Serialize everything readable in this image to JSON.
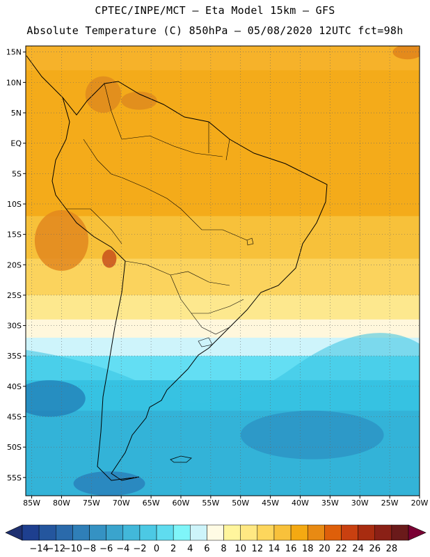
{
  "header": {
    "line1": "CPTEC/INPE/MCT –  Eta Model 15km – GFS",
    "line2": "Absolute Temperature (C) 850hPa – 05/08/2020 12UTC fct=98h"
  },
  "map": {
    "lat_range": [
      -58,
      16
    ],
    "lon_range": [
      -86,
      -20
    ],
    "lat_ticks": [
      "15N",
      "10N",
      "5N",
      "EQ",
      "5S",
      "10S",
      "15S",
      "20S",
      "25S",
      "30S",
      "35S",
      "40S",
      "45S",
      "50S",
      "55S"
    ],
    "lat_tick_values": [
      15,
      10,
      5,
      0,
      -5,
      -10,
      -15,
      -20,
      -25,
      -30,
      -35,
      -40,
      -45,
      -50,
      -55
    ],
    "lon_ticks": [
      "85W",
      "80W",
      "75W",
      "70W",
      "65W",
      "60W",
      "55W",
      "50W",
      "45W",
      "40W",
      "35W",
      "30W",
      "25W",
      "20W"
    ],
    "lon_tick_values": [
      -85,
      -80,
      -75,
      -70,
      -65,
      -60,
      -55,
      -50,
      -45,
      -40,
      -35,
      -30,
      -25,
      -20
    ],
    "bands": [
      {
        "lat_top": 16,
        "lat_bottom": 12,
        "color": "#f6b22a"
      },
      {
        "lat_top": 12,
        "lat_bottom": -12,
        "color": "#f4ab1a"
      },
      {
        "lat_top": -12,
        "lat_bottom": -19,
        "color": "#f7c13a"
      },
      {
        "lat_top": -19,
        "lat_bottom": -25,
        "color": "#fbd35d"
      },
      {
        "lat_top": -25,
        "lat_bottom": -29,
        "color": "#fde88e"
      },
      {
        "lat_top": -29,
        "lat_bottom": -32,
        "color": "#fff7dc"
      },
      {
        "lat_top": -32,
        "lat_bottom": -35,
        "color": "#cef4fb"
      },
      {
        "lat_top": -35,
        "lat_bottom": -39,
        "color": "#63def3"
      },
      {
        "lat_top": -39,
        "lat_bottom": -44,
        "color": "#37c2e2"
      },
      {
        "lat_top": -44,
        "lat_bottom": -58,
        "color": "#2fa0cc"
      }
    ],
    "hot_spots": [
      {
        "lon": -80,
        "lat": -16,
        "rx": 4.5,
        "ry": 5,
        "color": "#e2871f"
      },
      {
        "lon": -72,
        "lat": -19,
        "rx": 1.2,
        "ry": 1.5,
        "color": "#c8501b"
      },
      {
        "lon": -73,
        "lat": 8,
        "rx": 3,
        "ry": 3,
        "color": "#de8a1f"
      },
      {
        "lon": -67,
        "lat": 7,
        "rx": 3,
        "ry": 1.5,
        "color": "#de8a1f"
      },
      {
        "lon": -22,
        "lat": 15,
        "rx": 2.5,
        "ry": 1.2,
        "color": "#e0821a"
      }
    ],
    "cold_spots": [
      {
        "lon": -82,
        "lat": -42,
        "rx": 6,
        "ry": 3,
        "color": "#1f77b4"
      },
      {
        "lon": -38,
        "lat": -48,
        "rx": 12,
        "ry": 4,
        "color": "#2b8ec2"
      },
      {
        "lon": -72,
        "lat": -56,
        "rx": 6,
        "ry": 2,
        "color": "#2678b6"
      }
    ]
  },
  "colorbar": {
    "labels": [
      "-14",
      "-12",
      "-10",
      "-8",
      "-6",
      "-4",
      "-2",
      "0",
      "2",
      "4",
      "6",
      "8",
      "10",
      "12",
      "14",
      "16",
      "18",
      "20",
      "22",
      "24",
      "26",
      "28"
    ],
    "colors": [
      "#1e3f8f",
      "#24569e",
      "#2a6aab",
      "#2f7fb8",
      "#3592c3",
      "#3aa4cd",
      "#42b8da",
      "#4cc9e4",
      "#5fdcef",
      "#7ff5f9",
      "#cdf4fa",
      "#fffbe4",
      "#fff59d",
      "#ffe883",
      "#fdd65c",
      "#f8c13b",
      "#f4a912",
      "#e88a13",
      "#de5f0a",
      "#c94010",
      "#a82c10",
      "#8a2016",
      "#6a1a1a"
    ],
    "under_color": "#1e3070",
    "over_color": "#7a0033"
  }
}
